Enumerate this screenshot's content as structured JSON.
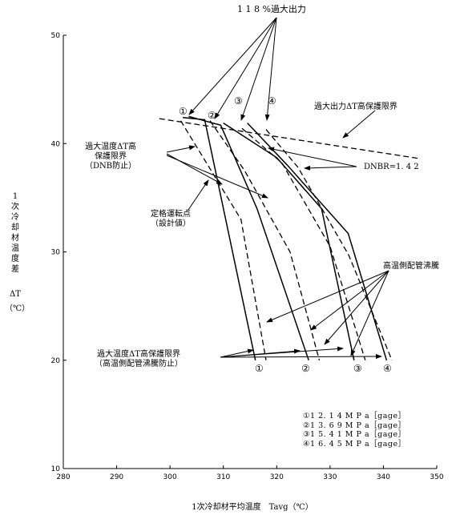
{
  "chart_data": {
    "type": "line",
    "title": "",
    "xlabel": "1次冷却材平均温度　Tavg（℃）",
    "ylabel_lines": [
      "1",
      "次",
      "冷",
      "却",
      "材",
      "温",
      "度",
      "差"
    ],
    "ylabel_symbol": "ΔT",
    "ylabel_unit": "（℃）",
    "xlim": [
      280,
      350
    ],
    "ylim": [
      10,
      50
    ],
    "x_ticks": [
      "280",
      "290",
      "300",
      "310",
      "320",
      "330",
      "340",
      "350"
    ],
    "y_ticks": [
      "10",
      "20",
      "30",
      "40",
      "50"
    ],
    "grid": false,
    "overpower_limit": {
      "label": "過大出力ΔT高保護限界",
      "points": [
        [
          298,
          42.3
        ],
        [
          347,
          38.6
        ]
      ]
    },
    "series": [
      {
        "name": "①",
        "solid": [
          [
            302.4,
            42.4
          ],
          [
            306.5,
            42.2
          ],
          [
            316,
            20
          ]
        ],
        "dashed": [
          [
            302,
            42.1
          ],
          [
            313.3,
            33
          ],
          [
            318,
            20
          ]
        ]
      },
      {
        "name": "②",
        "solid": [
          [
            303.5,
            42.5
          ],
          [
            309.5,
            41.7
          ],
          [
            316.3,
            34
          ],
          [
            326,
            20
          ]
        ],
        "dashed": [
          [
            307.5,
            42.1
          ],
          [
            314,
            37.5
          ],
          [
            322.5,
            30
          ],
          [
            328,
            20
          ]
        ]
      },
      {
        "name": "③",
        "solid": [
          [
            310,
            41.9
          ],
          [
            320,
            38.7
          ],
          [
            328.4,
            34
          ],
          [
            334.5,
            20
          ]
        ],
        "dashed": [
          [
            313.5,
            41.4
          ],
          [
            321,
            38.2
          ],
          [
            330,
            30.5
          ],
          [
            336.6,
            20
          ]
        ]
      },
      {
        "name": "④",
        "solid": [
          [
            314.5,
            41.9
          ],
          [
            322,
            38
          ],
          [
            333.4,
            31.7
          ],
          [
            340.6,
            20
          ]
        ],
        "dashed": [
          [
            318,
            41.3
          ],
          [
            324,
            37.8
          ],
          [
            333.5,
            29.7
          ],
          [
            341.6,
            20
          ]
        ]
      }
    ],
    "legend_entries": [
      "①1 2. 1 4 M P a［gage］",
      "②1 3. 6 9 M P a［gage］",
      "③1 5. 4 1 M P a［gage］",
      "④1 6. 4 5 M P a［gage］"
    ],
    "annotations": {
      "overpower_118": "1 1 8 %過大出力",
      "overtemp_dnb": [
        "過大温度ΔT高",
        "保護限界",
        "（DNB防止）"
      ],
      "dnbr": "DNBR=1. 4 2",
      "rated_point": [
        "定格運転点",
        "（設計値）"
      ],
      "hot_leg_boiling": "高温側配管沸騰",
      "overtemp_hot": [
        "過大温度ΔT高保護限界",
        "（高温側配管沸騰防止）"
      ],
      "curve_numbers_top": [
        "①",
        "②",
        "③",
        "④"
      ],
      "curve_numbers_bottom": [
        "①",
        "②",
        "③",
        "④"
      ]
    }
  }
}
